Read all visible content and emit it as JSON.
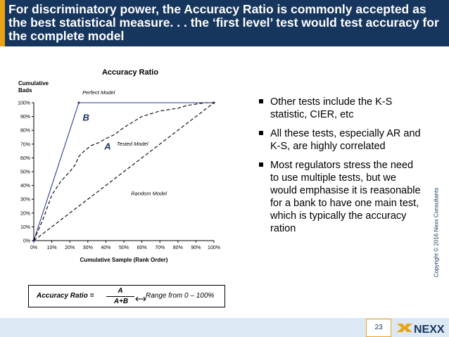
{
  "slide": {
    "title": "For discriminatory power, the Accuracy Ratio is commonly accepted as the best statistical measure. . . the ‘first level’ test would test accuracy for the complete model",
    "bullets": [
      "Other tests include the K-S statistic, CIER, etc",
      "All these tests, especially AR and K-S, are highly correlated",
      "Most regulators stress the need to use multiple tests, but we would emphasise it is reasonable for a bank to have one main test, which is typically the accuracy ration"
    ],
    "copyright": "Copyright © 2016 Nexx Consultants",
    "page_number": "23",
    "logo_text": "NEXX",
    "colors": {
      "header_bg": "#17365d",
      "accent": "#e8a317",
      "footer_band": "#dce8f4",
      "perfect_line": "#2e3a8c"
    }
  },
  "formula": {
    "label": "Accuracy Ratio =",
    "numerator": "A",
    "denominator": "A+B",
    "range_text": "Range from 0 – 100%"
  },
  "chart_data": {
    "type": "line",
    "title": "Accuracy Ratio",
    "ylabel": "Cumulative Bads",
    "xlabel": "Cumulative Sample (Rank Order)",
    "xlim": [
      0,
      100
    ],
    "ylim": [
      0,
      100
    ],
    "x_ticks": [
      "0%",
      "10%",
      "20%",
      "30%",
      "40%",
      "50%",
      "60%",
      "70%",
      "80%",
      "90%",
      "100%"
    ],
    "y_ticks": [
      "0%",
      "10%",
      "20%",
      "30%",
      "40%",
      "50%",
      "60%",
      "70%",
      "80%",
      "90%",
      "100%"
    ],
    "grid": false,
    "series": [
      {
        "name": "Perfect Model",
        "style": "solid",
        "x": [
          0,
          25,
          100
        ],
        "y": [
          0,
          100,
          100
        ]
      },
      {
        "name": "Tested Model",
        "style": "dashed",
        "x": [
          0,
          5,
          10,
          15,
          20,
          23,
          25,
          28,
          32,
          36,
          40,
          45,
          50,
          55,
          60,
          65,
          70,
          75,
          80,
          85,
          90,
          95,
          100
        ],
        "y": [
          0,
          15,
          33,
          43,
          50,
          55,
          61,
          65,
          69,
          71,
          74,
          77,
          82,
          86,
          90,
          92,
          94,
          95,
          96,
          98,
          99,
          100,
          100
        ]
      },
      {
        "name": "Random Model",
        "style": "dashed",
        "x": [
          0,
          100
        ],
        "y": [
          0,
          100
        ]
      }
    ],
    "annotations": [
      {
        "text": "B",
        "x": 29,
        "y": 87
      },
      {
        "text": "A",
        "x": 41,
        "y": 66
      }
    ]
  }
}
